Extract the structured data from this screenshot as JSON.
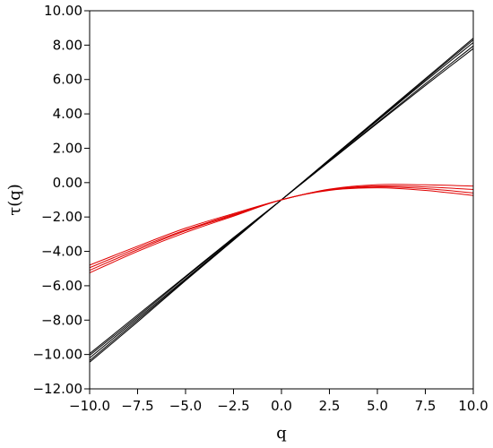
{
  "chart_data": {
    "type": "line",
    "title": "",
    "xlabel": "q",
    "ylabel": "τ(q)",
    "xlim": [
      -10,
      10
    ],
    "ylim": [
      -12,
      10
    ],
    "grid": false,
    "legend": "none",
    "x_ticks": [
      "−10.0",
      "−7.5",
      "−5.0",
      "−2.5",
      "0.0",
      "2.5",
      "5.0",
      "7.5",
      "10.0"
    ],
    "y_ticks": [
      "10.00",
      "8.00",
      "6.00",
      "4.00",
      "2.00",
      "0.00",
      "−2.00",
      "−4.00",
      "−6.00",
      "−8.00",
      "−10.00",
      "−12.00"
    ],
    "x": [
      -10,
      -7.5,
      -5,
      -2.5,
      0,
      2.5,
      5,
      7.5,
      10
    ],
    "series": [
      {
        "color": "#000000",
        "values": [
          -10.45,
          -8.1,
          -5.7,
          -3.35,
          -1.0,
          1.35,
          3.7,
          6.05,
          8.4
        ]
      },
      {
        "color": "#000000",
        "values": [
          -10.35,
          -8.0,
          -5.65,
          -3.3,
          -1.0,
          1.33,
          3.65,
          5.98,
          8.3
        ]
      },
      {
        "color": "#000000",
        "values": [
          -10.2,
          -7.9,
          -5.6,
          -3.3,
          -1.0,
          1.3,
          3.6,
          5.9,
          8.15
        ]
      },
      {
        "color": "#000000",
        "values": [
          -10.05,
          -7.8,
          -5.5,
          -3.25,
          -1.0,
          1.25,
          3.5,
          5.75,
          7.95
        ]
      },
      {
        "color": "#000000",
        "values": [
          -9.95,
          -7.7,
          -5.45,
          -3.2,
          -1.0,
          1.23,
          3.45,
          5.65,
          7.8
        ]
      },
      {
        "color": "#e00000",
        "values": [
          -5.25,
          -4.0,
          -2.9,
          -1.95,
          -1.0,
          -0.45,
          -0.3,
          -0.45,
          -0.75
        ]
      },
      {
        "color": "#e00000",
        "values": [
          -5.1,
          -3.9,
          -2.8,
          -1.9,
          -1.0,
          -0.42,
          -0.25,
          -0.35,
          -0.6
        ]
      },
      {
        "color": "#e00000",
        "values": [
          -4.95,
          -3.8,
          -2.75,
          -1.85,
          -1.0,
          -0.4,
          -0.2,
          -0.25,
          -0.4
        ]
      },
      {
        "color": "#e00000",
        "values": [
          -4.8,
          -3.7,
          -2.65,
          -1.8,
          -1.0,
          -0.38,
          -0.12,
          -0.13,
          -0.2
        ]
      }
    ]
  }
}
